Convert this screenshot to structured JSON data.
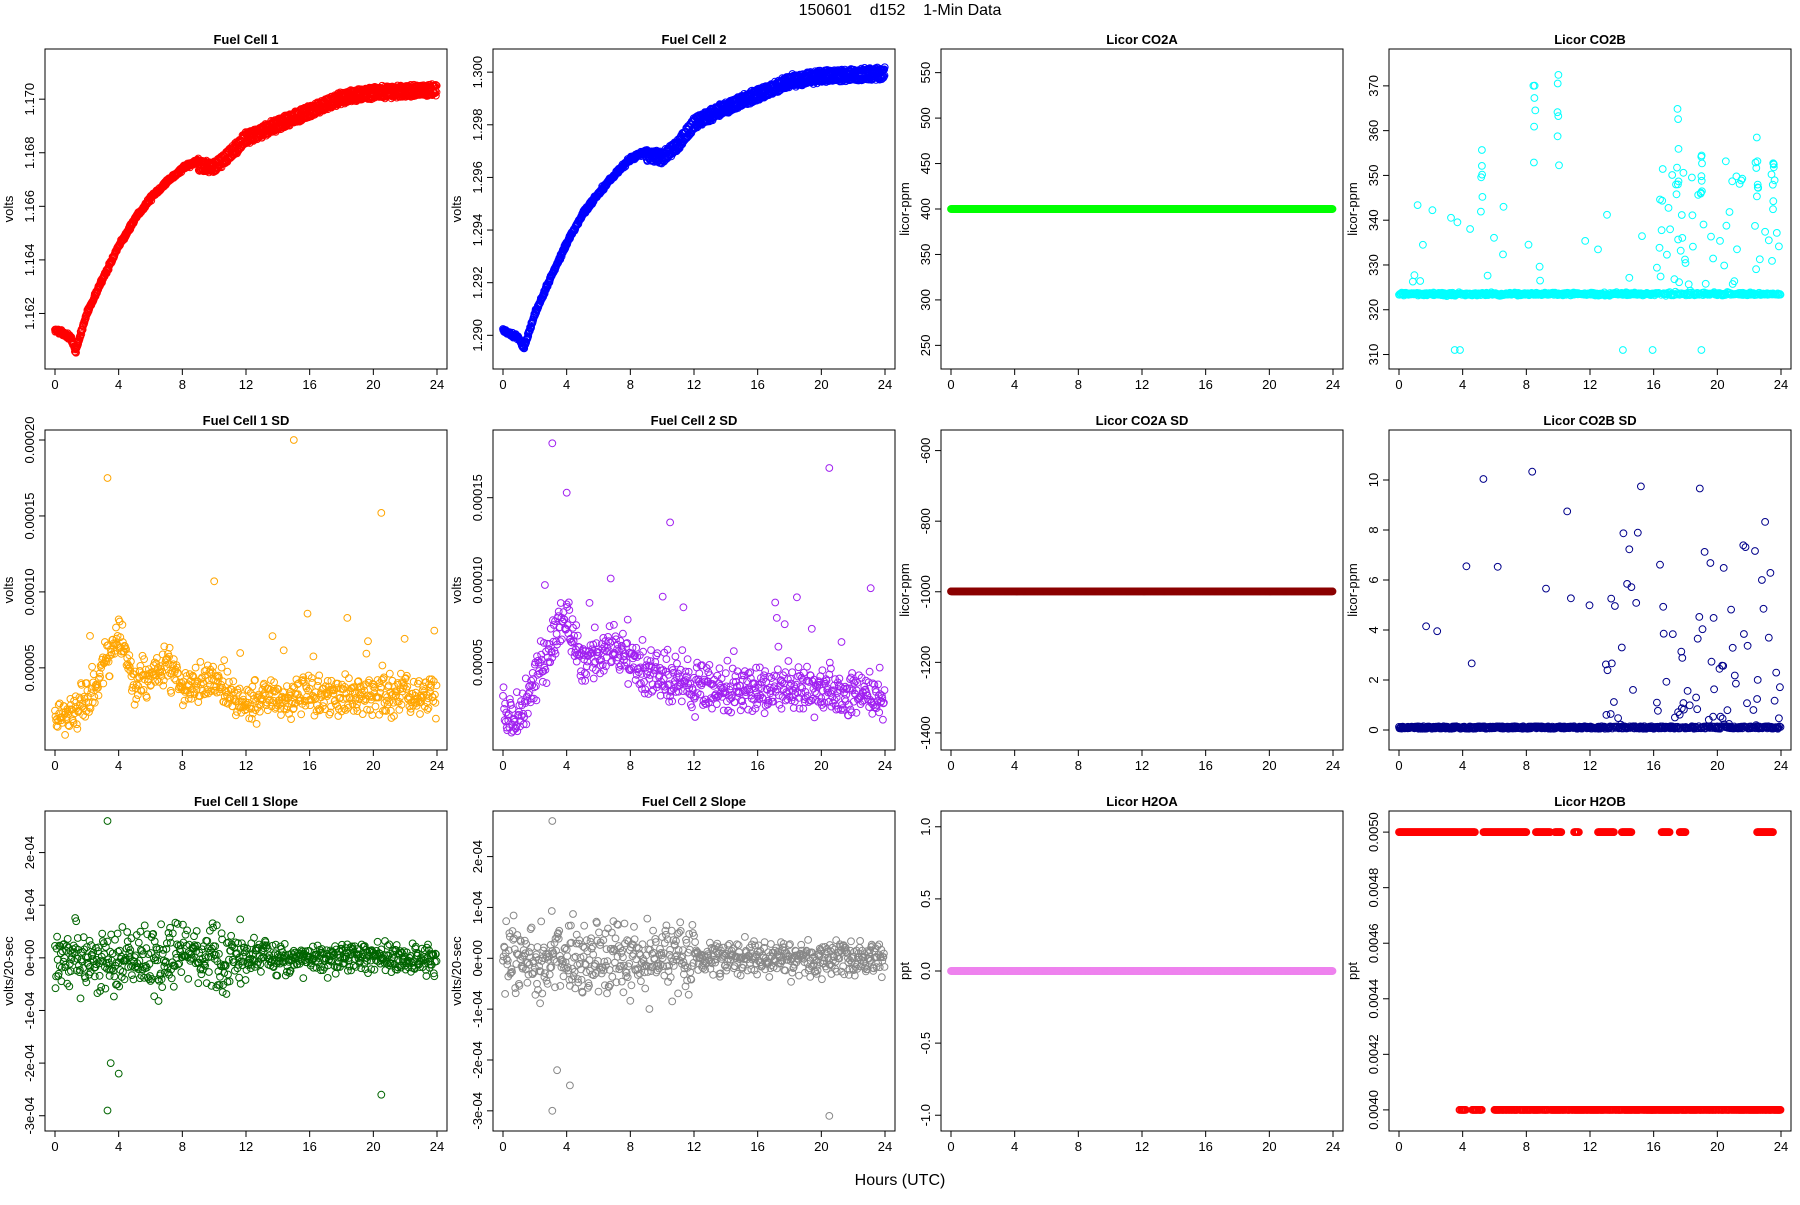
{
  "figure": {
    "title": "150601    d152    1-Min Data",
    "xlabel": "Hours (UTC)"
  },
  "chart_data": [
    {
      "id": "fc1",
      "type": "scatter",
      "title": "Fuel Cell 1",
      "ylabel": "volts",
      "color": "#ff0000",
      "xlim": [
        0,
        24
      ],
      "ylim": [
        1.1603,
        1.1715
      ],
      "xticks": [
        0,
        4,
        8,
        12,
        16,
        20,
        24
      ],
      "yticks": [
        1.162,
        1.164,
        1.166,
        1.168,
        1.17
      ],
      "ytick_labels": [
        "1.162",
        "1.164",
        "1.166",
        "1.168",
        "1.170"
      ],
      "trend": [
        [
          0,
          1.1614
        ],
        [
          1,
          1.1611
        ],
        [
          1.3,
          1.1606
        ],
        [
          2,
          1.162
        ],
        [
          3,
          1.1633
        ],
        [
          4,
          1.1645
        ],
        [
          5,
          1.1655
        ],
        [
          6,
          1.1663
        ],
        [
          7,
          1.1669
        ],
        [
          8,
          1.1674
        ],
        [
          9,
          1.1677
        ],
        [
          10,
          1.1676
        ],
        [
          11,
          1.1681
        ],
        [
          12,
          1.1687
        ],
        [
          14,
          1.1692
        ],
        [
          16,
          1.1697
        ],
        [
          18,
          1.1702
        ],
        [
          20,
          1.1704
        ],
        [
          24,
          1.1705
        ]
      ],
      "mode": "band",
      "noise": 0.00012,
      "split": 0.0003,
      "split_from": 9
    },
    {
      "id": "fc2",
      "type": "scatter",
      "title": "Fuel Cell 2",
      "ylabel": "volts",
      "color": "#0000ff",
      "xlim": [
        0,
        24
      ],
      "ylim": [
        1.2891,
        1.3005
      ],
      "xticks": [
        0,
        4,
        8,
        12,
        16,
        20,
        24
      ],
      "yticks": [
        1.29,
        1.292,
        1.294,
        1.296,
        1.298,
        1.3
      ],
      "ytick_labels": [
        "1.290",
        "1.292",
        "1.294",
        "1.296",
        "1.298",
        "1.300"
      ],
      "trend": [
        [
          0,
          1.2902
        ],
        [
          1,
          1.2899
        ],
        [
          1.3,
          1.2895
        ],
        [
          2,
          1.2908
        ],
        [
          3,
          1.2922
        ],
        [
          4,
          1.2935
        ],
        [
          5,
          1.2946
        ],
        [
          6,
          1.2954
        ],
        [
          7,
          1.2961
        ],
        [
          8,
          1.2967
        ],
        [
          9,
          1.297
        ],
        [
          10,
          1.2969
        ],
        [
          11,
          1.2974
        ],
        [
          12,
          1.2982
        ],
        [
          14,
          1.2988
        ],
        [
          16,
          1.2993
        ],
        [
          18,
          1.2998
        ],
        [
          20,
          1.3
        ],
        [
          24,
          1.3001
        ]
      ],
      "mode": "band",
      "noise": 0.00012,
      "split": 0.0003,
      "split_from": 9
    },
    {
      "id": "co2a",
      "type": "scatter",
      "title": "Licor CO2A",
      "ylabel": "licor-ppm",
      "color": "#00ff00",
      "xlim": [
        0,
        24
      ],
      "ylim": [
        235,
        565
      ],
      "xticks": [
        0,
        4,
        8,
        12,
        16,
        20,
        24
      ],
      "yticks": [
        250,
        300,
        350,
        400,
        450,
        500,
        550
      ],
      "ytick_labels": [
        "250",
        "300",
        "350",
        "400",
        "450",
        "500",
        "550"
      ],
      "mode": "flat",
      "value": 400
    },
    {
      "id": "co2b",
      "type": "scatter",
      "title": "Licor CO2B",
      "ylabel": "licor-ppm",
      "color": "#00ffff",
      "xlim": [
        0,
        24
      ],
      "ylim": [
        309,
        376
      ],
      "xticks": [
        0,
        4,
        8,
        12,
        16,
        20,
        24
      ],
      "yticks": [
        310,
        320,
        330,
        340,
        350,
        360,
        370
      ],
      "ytick_labels": [
        "310",
        "320",
        "330",
        "340",
        "350",
        "360",
        "370"
      ],
      "mode": "spikes",
      "base": 323.5,
      "base_noise": 0.5,
      "spike_max": 375,
      "dropout": 311,
      "spike_clusters": [
        [
          8.5,
          372
        ],
        [
          10,
          375
        ],
        [
          5.2,
          358
        ],
        [
          17.5,
          365
        ],
        [
          19,
          368
        ],
        [
          22.5,
          365
        ],
        [
          23.5,
          358
        ]
      ]
    },
    {
      "id": "fc1sd",
      "type": "scatter",
      "title": "Fuel Cell 1 SD",
      "ylabel": "volts",
      "color": "#ffa500",
      "xlim": [
        0,
        24
      ],
      "ylim": [
        2.5e-06,
        0.0002
      ],
      "xticks": [
        0,
        4,
        8,
        12,
        16,
        20,
        24
      ],
      "yticks": [
        5e-05,
        0.0001,
        0.00015,
        0.0002
      ],
      "ytick_labels": [
        "0.00005",
        "0.00010",
        "0.00015",
        "0.00020"
      ],
      "mode": "noisy",
      "baseline": [
        [
          0,
          2e-05
        ],
        [
          1,
          2e-05
        ],
        [
          2,
          3e-05
        ],
        [
          3,
          5e-05
        ],
        [
          4,
          7e-05
        ],
        [
          5,
          4e-05
        ],
        [
          7,
          5e-05
        ],
        [
          8,
          4e-05
        ],
        [
          10,
          4e-05
        ],
        [
          12,
          3e-05
        ],
        [
          24,
          3.2e-05
        ]
      ],
      "spread": 1.2e-05,
      "outliers": [
        [
          3.3,
          0.000175
        ],
        [
          15,
          0.0002
        ],
        [
          20.5,
          0.000152
        ],
        [
          10,
          0.000107
        ]
      ]
    },
    {
      "id": "fc2sd",
      "type": "scatter",
      "title": "Fuel Cell 2 SD",
      "ylabel": "volts",
      "color": "#a020f0",
      "xlim": [
        0,
        24
      ],
      "ylim": [
        3e-06,
        0.000185
      ],
      "xticks": [
        0,
        4,
        8,
        12,
        16,
        20,
        24
      ],
      "yticks": [
        5e-05,
        0.0001,
        0.00015
      ],
      "ytick_labels": [
        "0.00005",
        "0.00010",
        "0.00015"
      ],
      "mode": "noisy",
      "baseline": [
        [
          0,
          2e-05
        ],
        [
          1,
          1.5e-05
        ],
        [
          2,
          4e-05
        ],
        [
          3,
          6e-05
        ],
        [
          4,
          8e-05
        ],
        [
          5,
          5e-05
        ],
        [
          7,
          6e-05
        ],
        [
          8,
          5e-05
        ],
        [
          10,
          4e-05
        ],
        [
          12,
          3.5e-05
        ],
        [
          24,
          3e-05
        ]
      ],
      "spread": 1.3e-05,
      "outliers": [
        [
          3.1,
          0.000183
        ],
        [
          20.5,
          0.000168
        ],
        [
          10.5,
          0.000135
        ],
        [
          4,
          0.000153
        ]
      ]
    },
    {
      "id": "co2asd",
      "type": "scatter",
      "title": "Licor CO2A SD",
      "ylabel": "licor-ppm",
      "color": "#8b0000",
      "xlim": [
        0,
        24
      ],
      "ylim": [
        -1420,
        -570
      ],
      "xticks": [
        0,
        4,
        8,
        12,
        16,
        20,
        24
      ],
      "yticks": [
        -1400,
        -1200,
        -1000,
        -800,
        -600
      ],
      "ytick_labels": [
        "-1400",
        "-1200",
        "-1000",
        "-800",
        "-600"
      ],
      "mode": "flat",
      "value": -999
    },
    {
      "id": "co2bsd",
      "type": "scatter",
      "title": "Licor CO2B SD",
      "ylabel": "licor-ppm",
      "color": "#00008b",
      "xlim": [
        0,
        24
      ],
      "ylim": [
        -0.4,
        11.6
      ],
      "xticks": [
        0,
        4,
        8,
        12,
        16,
        20,
        24
      ],
      "yticks": [
        0,
        2,
        4,
        6,
        8,
        10
      ],
      "ytick_labels": [
        "0",
        "2",
        "4",
        "6",
        "8",
        "10"
      ],
      "mode": "sdspikes",
      "base": 0.05,
      "spike_max": 11.5,
      "dense_ranges": [
        [
          13,
          15
        ],
        [
          16.2,
          24
        ]
      ]
    },
    {
      "id": "fc1slope",
      "type": "scatter",
      "title": "Fuel Cell 1 Slope",
      "ylabel": "volts/20-sec",
      "color": "#006400",
      "xlim": [
        0,
        24
      ],
      "ylim": [
        -0.00031,
        0.00026
      ],
      "xticks": [
        0,
        4,
        8,
        12,
        16,
        20,
        24
      ],
      "yticks": [
        -0.0003,
        -0.0002,
        -0.0001,
        0,
        0.0001,
        0.0002
      ],
      "ytick_labels": [
        "-3e-04",
        "-2e-04",
        "-1e-04",
        "0e+00",
        "1e-04",
        "2e-04"
      ],
      "mode": "slope",
      "spread_early": 7e-05,
      "spread_late": 3.5e-05,
      "outliers": [
        [
          3.3,
          0.00026
        ],
        [
          3.3,
          -0.00029
        ],
        [
          20.5,
          -0.00026
        ],
        [
          4,
          -0.00022
        ],
        [
          3.5,
          -0.0002
        ]
      ]
    },
    {
      "id": "fc2slope",
      "type": "scatter",
      "title": "Fuel Cell 2 Slope",
      "ylabel": "volts/20-sec",
      "color": "#888888",
      "xlim": [
        0,
        24
      ],
      "ylim": [
        -0.00032,
        0.00027
      ],
      "xticks": [
        0,
        4,
        8,
        12,
        16,
        20,
        24
      ],
      "yticks": [
        -0.0003,
        -0.0002,
        -0.0001,
        0,
        0.0001,
        0.0002
      ],
      "ytick_labels": [
        "-3e-04",
        "-2e-04",
        "-1e-04",
        "0e+00",
        "1e-04",
        "2e-04"
      ],
      "mode": "slope",
      "spread_early": 8e-05,
      "spread_late": 4e-05,
      "outliers": [
        [
          3.1,
          0.00027
        ],
        [
          3.1,
          -0.0003
        ],
        [
          20.5,
          -0.00031
        ],
        [
          4.2,
          -0.00025
        ],
        [
          3.4,
          -0.00022
        ]
      ]
    },
    {
      "id": "h2oa",
      "type": "scatter",
      "title": "Licor H2OA",
      "ylabel": "ppt",
      "color": "#ee82ee",
      "xlim": [
        0,
        24
      ],
      "ylim": [
        -1.04,
        1.04
      ],
      "xticks": [
        0,
        4,
        8,
        12,
        16,
        20,
        24
      ],
      "yticks": [
        -1,
        -0.5,
        0,
        0.5,
        1
      ],
      "ytick_labels": [
        "-1.0",
        "-0.5",
        "0.0",
        "0.5",
        "1.0"
      ],
      "mode": "flat",
      "value": 0
    },
    {
      "id": "h2ob",
      "type": "scatter",
      "title": "Licor H2OB",
      "ylabel": "ppt",
      "color": "#ff0000",
      "xlim": [
        0,
        24
      ],
      "ylim": [
        0.00396,
        0.00504
      ],
      "xticks": [
        0,
        4,
        8,
        12,
        16,
        20,
        24
      ],
      "yticks": [
        0.004,
        0.0042,
        0.0044,
        0.0046,
        0.0048,
        0.005
      ],
      "ytick_labels": [
        "0.0040",
        "0.0042",
        "0.0044",
        "0.0046",
        "0.0048",
        "0.0050"
      ],
      "mode": "twolevel",
      "high": 0.005,
      "low": 0.004,
      "high_ranges": [
        [
          0,
          4.8
        ],
        [
          5.3,
          8
        ],
        [
          8.6,
          9.5
        ],
        [
          9.8,
          10.2
        ],
        [
          11,
          11.3
        ],
        [
          12.5,
          13.5
        ],
        [
          14,
          14.6
        ],
        [
          16.5,
          17
        ],
        [
          17.6,
          18
        ],
        [
          22.5,
          23.5
        ]
      ],
      "low_ranges": [
        [
          3.8,
          4.2
        ],
        [
          4.6,
          5.2
        ],
        [
          6,
          8
        ],
        [
          7.5,
          24
        ]
      ]
    }
  ]
}
